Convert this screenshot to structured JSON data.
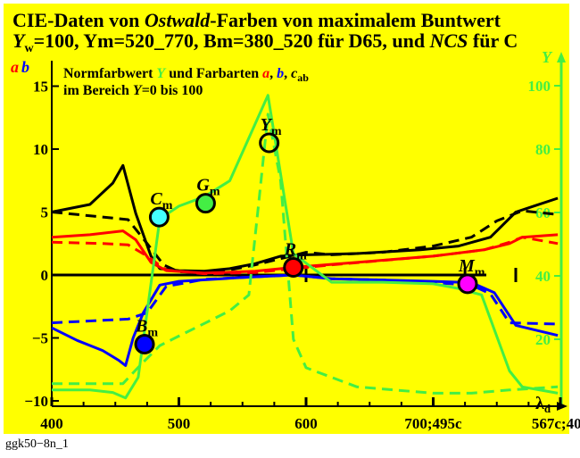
{
  "title_line1_a": "CIE-Daten von ",
  "title_line1_b": "Ostwald",
  "title_line1_c": "-Farben von maximalem Buntwert",
  "title_line2_a": "Y",
  "title_line2_sub": "w",
  "title_line2_b": "=100, Ym=520_770, Bm=380_520 für D65, und ",
  "title_line2_c": "NCS",
  "title_line2_d": " für C",
  "footer": "ggk50−8n_1",
  "legend": {
    "l1_a": "Normfarbwert ",
    "l1_Y": "Y",
    "l1_b": " und Farbarten ",
    "l1_a_sym": "a",
    "l1_comma1": ", ",
    "l1_b_sym": "b",
    "l1_comma2": ", ",
    "l1_c_sym": "c",
    "l1_c_sub": "ab",
    "l2_a": "im Bereich ",
    "l2_Y": "Y",
    "l2_b": "=0 bis 100"
  },
  "left_axis_label_a": "a",
  "left_axis_label_b": "b",
  "right_axis_label": "Y",
  "x_axis_label": "λ",
  "x_axis_label_sub": "d",
  "colors": {
    "background": "#ffff00",
    "black": "#000000",
    "red": "#ff0000",
    "blue": "#0000ff",
    "green": "#44ee44",
    "cyan": "#44ffff",
    "magenta": "#ff00ff"
  },
  "chart_data": {
    "type": "line",
    "x_tick_labels": [
      "400",
      "500",
      "600",
      "700;495c",
      "567c;400"
    ],
    "x_tick_values": [
      400,
      500,
      600,
      700,
      800
    ],
    "xlim": [
      400,
      800
    ],
    "y_left_ticks": [
      15,
      10,
      5,
      0,
      -5,
      -10
    ],
    "y_left_tick_labels": [
      "15",
      "10",
      "5",
      "0",
      "−5",
      "−10"
    ],
    "ylim_left": [
      -10,
      16.5
    ],
    "y_right_ticks": [
      20,
      40,
      60,
      80,
      100
    ],
    "y_right_tick_labels": [
      "20",
      "40",
      "60",
      "80",
      "100"
    ],
    "ylim_right": [
      0,
      107
    ],
    "grid": false,
    "series": [
      {
        "color": "black",
        "dash": false,
        "axis": "left",
        "points": [
          [
            400,
            5
          ],
          [
            430,
            5.6
          ],
          [
            448,
            7.3
          ],
          [
            456,
            8.7
          ],
          [
            466,
            4.9
          ],
          [
            478,
            1.5
          ],
          [
            485,
            0.5
          ],
          [
            500,
            0.35
          ],
          [
            520,
            0.3
          ],
          [
            540,
            0.5
          ],
          [
            560,
            0.9
          ],
          [
            580,
            1.5
          ],
          [
            600,
            1.6
          ],
          [
            640,
            1.7
          ],
          [
            690,
            2
          ],
          [
            720,
            2.3
          ],
          [
            745,
            3
          ],
          [
            755,
            4
          ],
          [
            765,
            5
          ],
          [
            780,
            5.5
          ],
          [
            798,
            6.1
          ]
        ]
      },
      {
        "color": "black",
        "dash": true,
        "axis": "left",
        "points": [
          [
            400,
            5
          ],
          [
            420,
            4.8
          ],
          [
            440,
            4.6
          ],
          [
            460,
            4.4
          ],
          [
            475,
            2.5
          ],
          [
            488,
            0.8
          ],
          [
            500,
            0.25
          ],
          [
            520,
            0.2
          ],
          [
            540,
            0.4
          ],
          [
            560,
            0.8
          ],
          [
            580,
            1.3
          ],
          [
            600,
            1.8
          ],
          [
            620,
            1.6
          ],
          [
            660,
            1.8
          ],
          [
            700,
            2.3
          ],
          [
            730,
            3
          ],
          [
            750,
            4.3
          ],
          [
            770,
            5.1
          ],
          [
            798,
            4.8
          ]
        ]
      },
      {
        "color": "red",
        "dash": false,
        "axis": "left",
        "points": [
          [
            400,
            3
          ],
          [
            430,
            3.2
          ],
          [
            456,
            3.5
          ],
          [
            466,
            2.8
          ],
          [
            478,
            1.0
          ],
          [
            490,
            0.35
          ],
          [
            520,
            0.15
          ],
          [
            560,
            0.3
          ],
          [
            590,
            0.6
          ],
          [
            640,
            1.0
          ],
          [
            700,
            1.5
          ],
          [
            740,
            2.0
          ],
          [
            760,
            2.5
          ],
          [
            770,
            3.0
          ],
          [
            798,
            3.2
          ]
        ]
      },
      {
        "color": "red",
        "dash": true,
        "axis": "left",
        "points": [
          [
            400,
            2.6
          ],
          [
            440,
            2.5
          ],
          [
            460,
            2.4
          ],
          [
            475,
            1.5
          ],
          [
            490,
            0.4
          ],
          [
            520,
            0.1
          ],
          [
            560,
            0.2
          ],
          [
            590,
            0.5
          ],
          [
            620,
            0.8
          ],
          [
            700,
            1.5
          ],
          [
            740,
            2.0
          ],
          [
            760,
            2.6
          ],
          [
            770,
            3.0
          ],
          [
            798,
            2.5
          ]
        ]
      },
      {
        "color": "blue",
        "dash": false,
        "axis": "left",
        "points": [
          [
            400,
            -4.2
          ],
          [
            420,
            -5.2
          ],
          [
            440,
            -6.0
          ],
          [
            453,
            -6.8
          ],
          [
            458,
            -7.2
          ],
          [
            464,
            -5.0
          ],
          [
            472,
            -3.0
          ],
          [
            485,
            -0.8
          ],
          [
            500,
            -0.5
          ],
          [
            550,
            -0.2
          ],
          [
            590,
            0
          ],
          [
            620,
            -0.3
          ],
          [
            660,
            -0.4
          ],
          [
            700,
            -0.5
          ],
          [
            730,
            -0.6
          ],
          [
            748,
            -1.4
          ],
          [
            765,
            -4.0
          ],
          [
            798,
            -4.8
          ]
        ]
      },
      {
        "color": "blue",
        "dash": true,
        "axis": "left",
        "points": [
          [
            400,
            -3.8
          ],
          [
            440,
            -3.6
          ],
          [
            460,
            -3.5
          ],
          [
            475,
            -3.0
          ],
          [
            490,
            -0.9
          ],
          [
            520,
            -0.35
          ],
          [
            560,
            -0.15
          ],
          [
            590,
            0
          ],
          [
            620,
            -0.3
          ],
          [
            660,
            -0.4
          ],
          [
            700,
            -0.6
          ],
          [
            730,
            -0.8
          ],
          [
            745,
            -1.5
          ],
          [
            760,
            -3.8
          ],
          [
            798,
            -3.9
          ]
        ]
      },
      {
        "color": "green",
        "dash": false,
        "axis": "right",
        "points": [
          [
            400,
            4
          ],
          [
            430,
            4
          ],
          [
            448,
            3.2
          ],
          [
            458,
            1.5
          ],
          [
            468,
            8
          ],
          [
            485,
            58
          ],
          [
            500,
            62
          ],
          [
            520,
            65
          ],
          [
            540,
            70
          ],
          [
            570,
            97
          ],
          [
            590,
            47
          ],
          [
            620,
            38
          ],
          [
            660,
            38
          ],
          [
            700,
            37.5
          ],
          [
            720,
            36
          ],
          [
            738,
            34
          ],
          [
            760,
            10
          ],
          [
            770,
            5
          ],
          [
            798,
            3
          ]
        ]
      },
      {
        "color": "green",
        "dash": true,
        "axis": "right",
        "points": [
          [
            400,
            6
          ],
          [
            430,
            6
          ],
          [
            456,
            6
          ],
          [
            470,
            12
          ],
          [
            485,
            18
          ],
          [
            500,
            21
          ],
          [
            520,
            25
          ],
          [
            540,
            29
          ],
          [
            555,
            34
          ],
          [
            563,
            64
          ],
          [
            570,
            91
          ],
          [
            580,
            70
          ],
          [
            590,
            20
          ],
          [
            600,
            11
          ],
          [
            640,
            5
          ],
          [
            700,
            3
          ],
          [
            730,
            3
          ],
          [
            760,
            4
          ],
          [
            798,
            5
          ]
        ]
      }
    ],
    "markers": [
      {
        "label": "C",
        "sub": "m",
        "x": 484.5,
        "y": 4.6,
        "axis": "left",
        "fill": "cyan",
        "dash_x": 482
      },
      {
        "label": "G",
        "sub": "m",
        "x": 521,
        "y": 5.7,
        "axis": "left",
        "fill": "green",
        "dash_x": 521
      },
      {
        "label": "Y",
        "sub": "m",
        "x": 571,
        "y": 10.5,
        "axis": "left",
        "fill": "none",
        "dash_x": 571
      },
      {
        "label": "R",
        "sub": "m",
        "x": 590,
        "y": 0.6,
        "axis": "left",
        "fill": "red",
        "dash_x": 590
      },
      {
        "label": "M",
        "sub": "m",
        "x": 727,
        "y": -0.7,
        "axis": "left",
        "fill": "magenta",
        "dash_x": 727
      },
      {
        "label": "B",
        "sub": "m",
        "x": 473,
        "y": -5.5,
        "axis": "left",
        "fill": "blue",
        "dash_x": 473
      }
    ]
  }
}
